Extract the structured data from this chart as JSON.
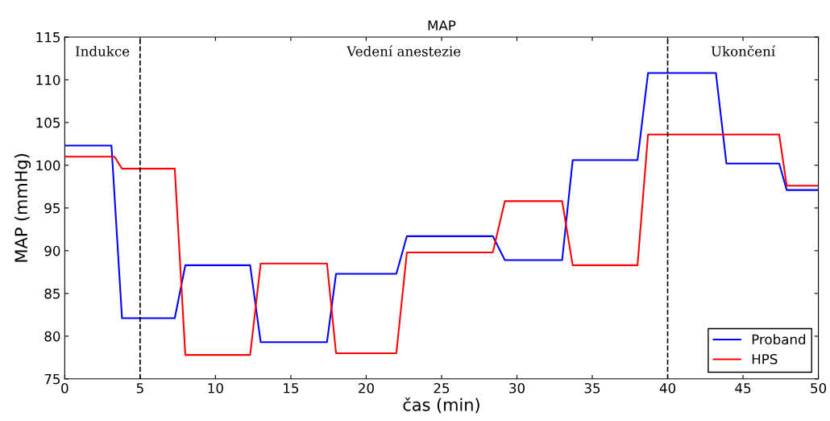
{
  "chart_data": {
    "type": "line",
    "title": "MAP",
    "xlabel": "čas (min)",
    "ylabel": "MAP (mmHg)",
    "xlim": [
      0,
      50
    ],
    "xticks": [
      0,
      5,
      10,
      15,
      20,
      25,
      30,
      35,
      40,
      45,
      50
    ],
    "ylim": [
      75,
      115
    ],
    "yticks": [
      75,
      80,
      85,
      90,
      95,
      100,
      105,
      110,
      115
    ],
    "grid": false,
    "legend": "bottom right",
    "line_style": "solid",
    "marker": "none",
    "series": [
      {
        "name": "Proband",
        "color": "#0000ff",
        "x": [
          0,
          3.1,
          3.8,
          7.3,
          8.0,
          12.3,
          13.0,
          17.4,
          18.0,
          22.0,
          22.7,
          28.4,
          29.2,
          33.0,
          33.7,
          38.0,
          38.7,
          43.2,
          43.9,
          47.4,
          47.9,
          50
        ],
        "values": [
          102.3,
          102.3,
          82.1,
          82.1,
          88.3,
          88.3,
          79.3,
          79.3,
          87.3,
          87.3,
          91.7,
          91.7,
          88.9,
          88.9,
          100.6,
          100.6,
          110.8,
          110.8,
          100.2,
          100.2,
          97.1,
          97.1
        ]
      },
      {
        "name": "HPS",
        "color": "#ff0000",
        "x": [
          0,
          3.3,
          3.8,
          7.3,
          8.0,
          12.3,
          13.0,
          17.4,
          18.0,
          22.0,
          22.7,
          28.4,
          29.2,
          33.0,
          33.7,
          38.0,
          38.7,
          47.4,
          47.9,
          50
        ],
        "values": [
          101.0,
          101.0,
          99.6,
          99.6,
          77.8,
          77.8,
          88.5,
          88.5,
          78.0,
          78.0,
          89.8,
          89.8,
          95.8,
          95.8,
          88.3,
          88.3,
          103.6,
          103.6,
          97.6,
          97.6
        ]
      }
    ],
    "ref_lines": [
      {
        "axis": "x",
        "value": 5,
        "color": "#000000",
        "line_style": "dashed"
      },
      {
        "axis": "x",
        "value": 40,
        "color": "#000000",
        "line_style": "dashed"
      }
    ],
    "annotations": [
      "Indukce",
      "Vedení anestezie",
      "Ukončení"
    ]
  }
}
